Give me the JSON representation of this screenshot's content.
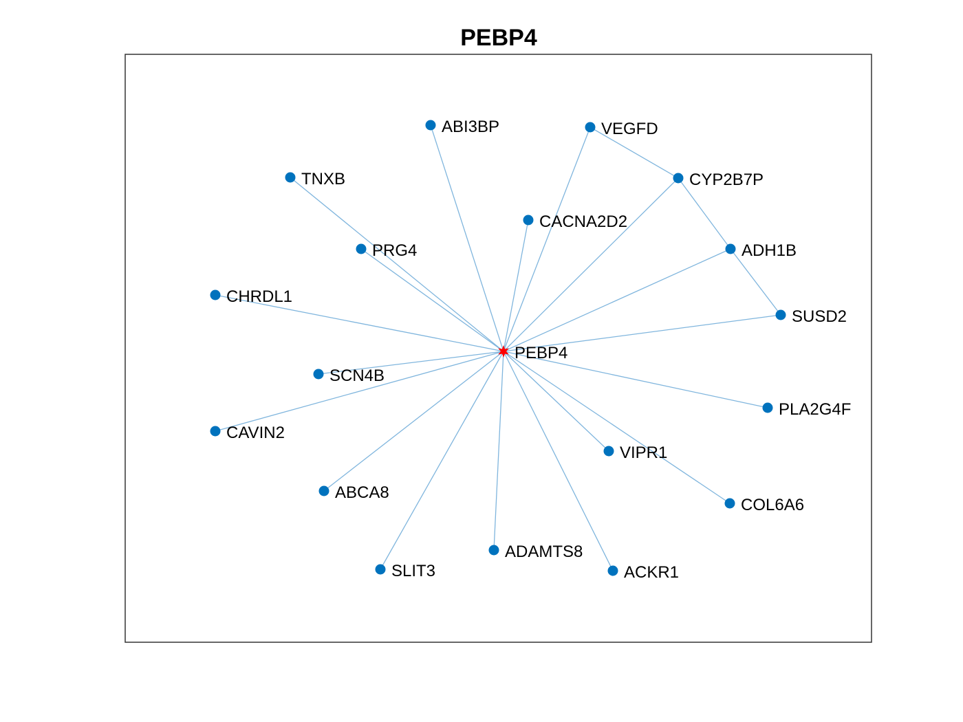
{
  "title": "PEBP4",
  "colors": {
    "node": "#0072bd",
    "edge": "#7fb5dd",
    "center": "#ff0000",
    "frame": "#333333"
  },
  "graph": {
    "center": "PEBP4",
    "nodes": [
      "PEBP4",
      "ABI3BP",
      "VEGFD",
      "TNXB",
      "CYP2B7P",
      "CACNA2D2",
      "PRG4",
      "ADH1B",
      "CHRDL1",
      "SUSD2",
      "SCN4B",
      "PLA2G4F",
      "CAVIN2",
      "VIPR1",
      "ABCA8",
      "COL6A6",
      "ADAMTS8",
      "SLIT3",
      "ACKR1"
    ],
    "edges": [
      [
        "PEBP4",
        "ABI3BP"
      ],
      [
        "PEBP4",
        "VEGFD"
      ],
      [
        "PEBP4",
        "TNXB"
      ],
      [
        "PEBP4",
        "CYP2B7P"
      ],
      [
        "PEBP4",
        "CACNA2D2"
      ],
      [
        "PEBP4",
        "PRG4"
      ],
      [
        "PEBP4",
        "ADH1B"
      ],
      [
        "PEBP4",
        "CHRDL1"
      ],
      [
        "PEBP4",
        "SUSD2"
      ],
      [
        "PEBP4",
        "SCN4B"
      ],
      [
        "PEBP4",
        "PLA2G4F"
      ],
      [
        "PEBP4",
        "CAVIN2"
      ],
      [
        "PEBP4",
        "VIPR1"
      ],
      [
        "PEBP4",
        "ABCA8"
      ],
      [
        "PEBP4",
        "COL6A6"
      ],
      [
        "PEBP4",
        "ADAMTS8"
      ],
      [
        "PEBP4",
        "SLIT3"
      ],
      [
        "PEBP4",
        "ACKR1"
      ],
      [
        "VEGFD",
        "CYP2B7P"
      ],
      [
        "CYP2B7P",
        "ADH1B"
      ],
      [
        "ADH1B",
        "SUSD2"
      ]
    ]
  }
}
